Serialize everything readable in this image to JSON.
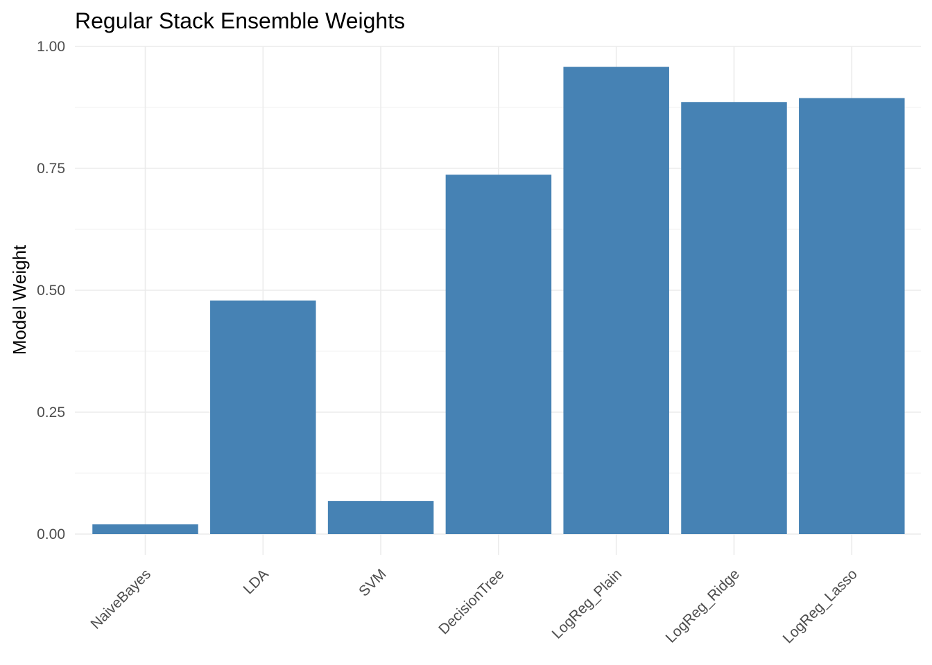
{
  "chart_data": {
    "type": "bar",
    "title": "Regular Stack Ensemble Weights",
    "xlabel": "",
    "ylabel": "Model Weight",
    "categories": [
      "NaiveBayes",
      "LDA",
      "SVM",
      "DecisionTree",
      "LogReg_Plain",
      "LogReg_Ridge",
      "LogReg_Lasso"
    ],
    "values": [
      0.02,
      0.479,
      0.068,
      0.737,
      0.958,
      0.886,
      0.894
    ],
    "ylim": [
      0,
      1
    ],
    "yticks": [
      "0.00",
      "0.25",
      "0.50",
      "0.75",
      "1.00"
    ],
    "bar_color": "#4682B4",
    "grid": true,
    "legend": "none"
  }
}
